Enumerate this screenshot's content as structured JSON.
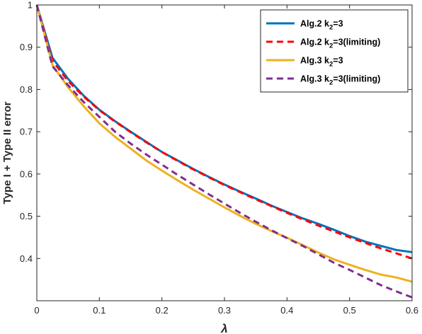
{
  "chart_data": {
    "type": "line",
    "xlabel": "λ",
    "ylabel": "Type I + Type II error",
    "xlim": [
      0,
      0.6
    ],
    "ylim": [
      0.3,
      1.0
    ],
    "xticks": [
      "0",
      "0.1",
      "0.2",
      "0.3",
      "0.4",
      "0.5",
      "0.6"
    ],
    "yticks": [
      "1",
      "0.9",
      "0.8",
      "0.7",
      "0.6",
      "0.5",
      "0.4"
    ],
    "grid": false,
    "legend_position": "top-right",
    "series": [
      {
        "name": "Alg.2 k2=3",
        "legend_main": "Alg.2 k",
        "legend_sub": "2",
        "legend_rest": "=3",
        "color": "#0072BD",
        "style": "solid",
        "x": [
          0,
          0.025,
          0.05,
          0.075,
          0.1,
          0.125,
          0.15,
          0.175,
          0.2,
          0.225,
          0.25,
          0.275,
          0.3,
          0.325,
          0.35,
          0.375,
          0.4,
          0.425,
          0.45,
          0.475,
          0.5,
          0.525,
          0.55,
          0.575,
          0.6
        ],
        "y": [
          1.0,
          0.875,
          0.825,
          0.785,
          0.752,
          0.725,
          0.7,
          0.676,
          0.652,
          0.632,
          0.612,
          0.593,
          0.575,
          0.558,
          0.542,
          0.525,
          0.51,
          0.495,
          0.482,
          0.468,
          0.453,
          0.44,
          0.43,
          0.42,
          0.415
        ]
      },
      {
        "name": "Alg.2 k2=3(limiting)",
        "legend_main": "Alg.2 k",
        "legend_sub": "2",
        "legend_rest": "=3(limiting)",
        "color": "#FF0000",
        "style": "dashed",
        "x": [
          0,
          0.025,
          0.05,
          0.075,
          0.1,
          0.125,
          0.15,
          0.175,
          0.2,
          0.225,
          0.25,
          0.275,
          0.3,
          0.325,
          0.35,
          0.375,
          0.4,
          0.425,
          0.45,
          0.475,
          0.5,
          0.525,
          0.55,
          0.575,
          0.6
        ],
        "y": [
          1.0,
          0.868,
          0.82,
          0.783,
          0.751,
          0.724,
          0.699,
          0.675,
          0.652,
          0.631,
          0.611,
          0.592,
          0.574,
          0.557,
          0.54,
          0.524,
          0.508,
          0.493,
          0.478,
          0.464,
          0.45,
          0.437,
          0.424,
          0.412,
          0.4
        ]
      },
      {
        "name": "Alg.3 k2=3",
        "legend_main": "Alg.3 k",
        "legend_sub": "2",
        "legend_rest": "=3",
        "color": "#EDB120",
        "style": "solid",
        "x": [
          0,
          0.025,
          0.05,
          0.075,
          0.1,
          0.125,
          0.15,
          0.175,
          0.2,
          0.225,
          0.25,
          0.275,
          0.3,
          0.325,
          0.35,
          0.375,
          0.4,
          0.425,
          0.45,
          0.475,
          0.5,
          0.525,
          0.55,
          0.575,
          0.6
        ],
        "y": [
          1.0,
          0.858,
          0.805,
          0.76,
          0.72,
          0.688,
          0.66,
          0.632,
          0.608,
          0.585,
          0.563,
          0.542,
          0.521,
          0.501,
          0.482,
          0.465,
          0.449,
          0.432,
          0.414,
          0.398,
          0.385,
          0.373,
          0.362,
          0.355,
          0.345
        ]
      },
      {
        "name": "Alg.3 k2=3(limiting)",
        "legend_main": "Alg.3 k",
        "legend_sub": "2",
        "legend_rest": "=3(limiting)",
        "color": "#7E2F8E",
        "style": "dashed",
        "x": [
          0,
          0.025,
          0.05,
          0.075,
          0.1,
          0.125,
          0.15,
          0.175,
          0.2,
          0.225,
          0.25,
          0.275,
          0.3,
          0.325,
          0.35,
          0.375,
          0.4,
          0.425,
          0.45,
          0.475,
          0.5,
          0.525,
          0.55,
          0.575,
          0.6
        ],
        "y": [
          1.0,
          0.855,
          0.81,
          0.77,
          0.735,
          0.7,
          0.672,
          0.646,
          0.622,
          0.598,
          0.575,
          0.552,
          0.53,
          0.508,
          0.487,
          0.467,
          0.448,
          0.43,
          0.41,
          0.39,
          0.373,
          0.355,
          0.337,
          0.322,
          0.308
        ]
      }
    ]
  }
}
